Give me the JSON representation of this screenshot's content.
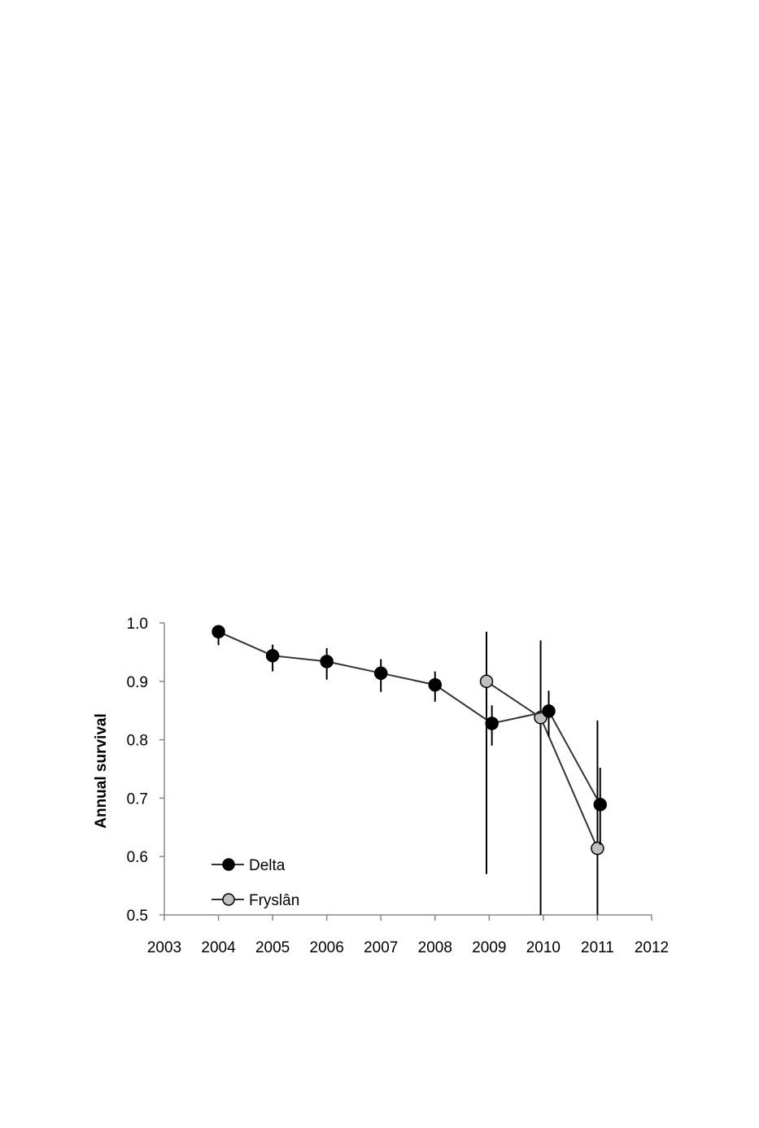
{
  "chart_data": {
    "type": "line",
    "ylabel": "Annual survival",
    "xlabel": "",
    "xlim": [
      2003,
      2012
    ],
    "ylim": [
      0.5,
      1.0
    ],
    "x_ticks": [
      "2003",
      "2004",
      "2005",
      "2006",
      "2007",
      "2008",
      "2009",
      "2010",
      "2011",
      "2012"
    ],
    "y_ticks": [
      "1.0",
      "0.9",
      "0.8",
      "0.7",
      "0.6",
      "0.5"
    ],
    "legend_position": "bottom-left",
    "grid": false,
    "series": [
      {
        "name": "Delta",
        "marker_color": "#000000",
        "line_color": "#333333",
        "points": [
          {
            "x": 2004,
            "y": 0.985,
            "lo": 0.962,
            "hi": 0.993
          },
          {
            "x": 2005,
            "y": 0.944,
            "lo": 0.917,
            "hi": 0.963
          },
          {
            "x": 2006,
            "y": 0.934,
            "lo": 0.903,
            "hi": 0.957
          },
          {
            "x": 2007,
            "y": 0.914,
            "lo": 0.882,
            "hi": 0.938
          },
          {
            "x": 2008,
            "y": 0.894,
            "lo": 0.865,
            "hi": 0.917
          },
          {
            "x": 2009.05,
            "y": 0.828,
            "lo": 0.79,
            "hi": 0.859
          },
          {
            "x": 2010.1,
            "y": 0.849,
            "lo": 0.805,
            "hi": 0.884
          },
          {
            "x": 2011.05,
            "y": 0.689,
            "lo": 0.62,
            "hi": 0.752
          }
        ]
      },
      {
        "name": "Fryslân",
        "marker_color": "#c0c0c0",
        "line_color": "#333333",
        "points": [
          {
            "x": 2008.95,
            "y": 0.9,
            "lo": 0.57,
            "hi": 0.985
          },
          {
            "x": 2009.95,
            "y": 0.838,
            "lo": 0.49,
            "hi": 0.97
          },
          {
            "x": 2011.0,
            "y": 0.614,
            "lo": 0.49,
            "hi": 0.833
          }
        ]
      }
    ]
  }
}
